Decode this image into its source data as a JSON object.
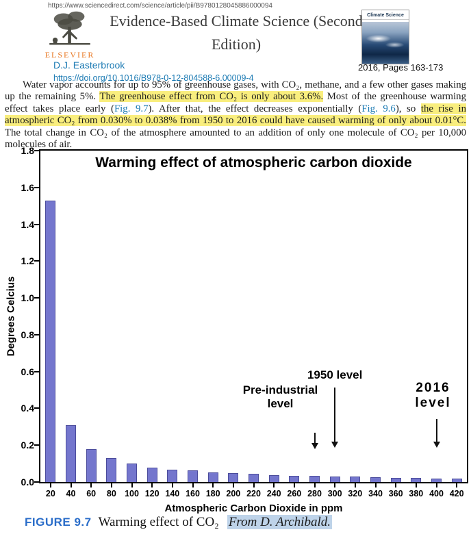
{
  "header": {
    "url": "https://www.sciencedirect.com/science/article/pii/B9780128045886000094",
    "publisher": "ELSEVIER",
    "title_line1": "Evidence-Based Climate Science (Second",
    "title_line2": "Edition)",
    "author": "D.J. Easterbrook",
    "doi": "https://doi.org/10.1016/B978-0-12-804588-6.00009-4",
    "pages_info": "2016, Pages 163-173",
    "cover_title": "Climate Science"
  },
  "abstract": {
    "segments": [
      {
        "text": "Water vapor accounts for up to 95% of greenhouse gases, with CO₂, methane, and a few other gases making up the remaining 5%. ",
        "style": "plain"
      },
      {
        "text": "The greenhouse effect from CO₂ is only about 3.6%.",
        "style": "highlight"
      },
      {
        "text": " Most of the greenhouse warming effect takes place early (",
        "style": "plain"
      },
      {
        "text": "Fig. 9.7",
        "style": "link"
      },
      {
        "text": "). After that, the effect decreases exponentially (",
        "style": "plain"
      },
      {
        "text": "Fig. 9.6",
        "style": "link"
      },
      {
        "text": "), so ",
        "style": "plain"
      },
      {
        "text": "the rise in atmospheric CO₂ from 0.030% to 0.038% from 1950 to 2016 could have caused warming of only about 0.01°C.",
        "style": "highlight"
      },
      {
        "text": " The total change in CO₂ of the atmosphere amounted to an addition of only one molecule of CO₂ per 10,000 molecules of air.",
        "style": "plain"
      }
    ]
  },
  "chart_data": {
    "type": "bar",
    "title": "Warming effect of atmospheric carbon dioxide",
    "xlabel": "Atmospheric Carbon Dioxide in ppm",
    "ylabel": "Degrees Celcius",
    "categories": [
      20,
      40,
      60,
      80,
      100,
      120,
      140,
      160,
      180,
      200,
      220,
      240,
      260,
      280,
      300,
      320,
      340,
      360,
      380,
      400,
      420
    ],
    "values": [
      1.53,
      0.31,
      0.18,
      0.13,
      0.1,
      0.078,
      0.067,
      0.063,
      0.052,
      0.048,
      0.044,
      0.037,
      0.033,
      0.033,
      0.03,
      0.028,
      0.026,
      0.022,
      0.022,
      0.02,
      0.017
    ],
    "ylim": [
      0,
      1.8
    ],
    "ytick_step": 0.2,
    "grid": false,
    "legend": false,
    "bar_color": "#7476cd",
    "annotations": [
      {
        "label": "Pre-industrial level",
        "target": 280
      },
      {
        "label": "1950 level",
        "target": 300
      },
      {
        "label": "2016 level",
        "target": 400
      }
    ]
  },
  "caption": {
    "figure_label": "FIGURE 9.7",
    "text": "Warming effect of CO₂",
    "attribution": "From D. Archibald."
  },
  "colors": {
    "link_blue": "#1b7ab3",
    "highlight_yellow": "#f9ee7e",
    "selection_blue": "#bed3e9",
    "elsevier_orange": "#e87722",
    "figure_label_blue": "#2a6dc9",
    "bar_fill": "#7476cd"
  }
}
